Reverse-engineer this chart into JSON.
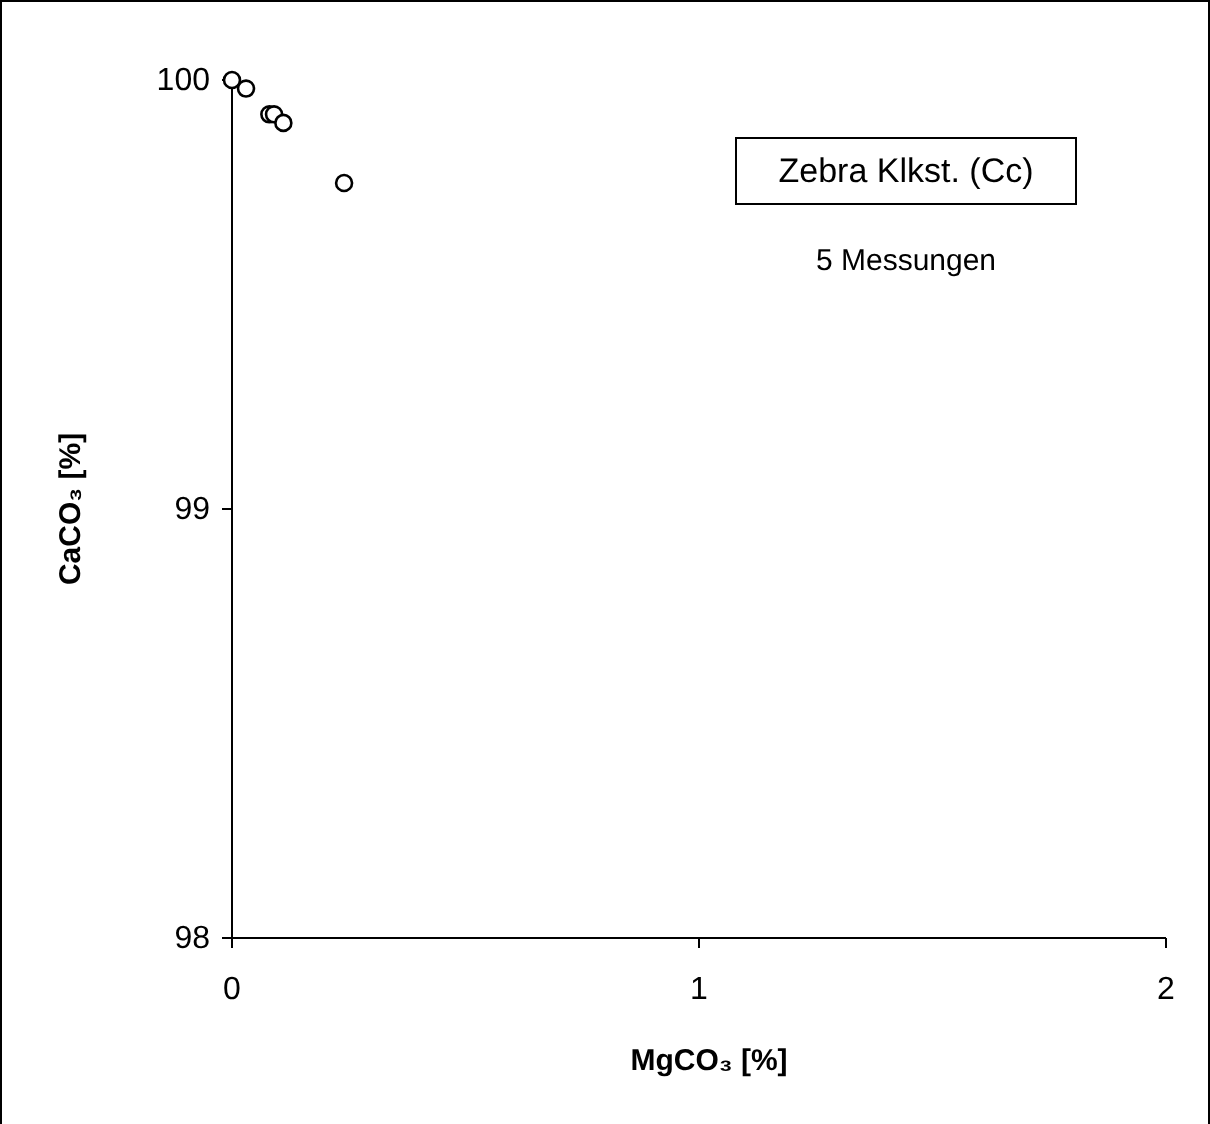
{
  "chart_data": {
    "type": "scatter",
    "xlabel": "MgCO₃ [%]",
    "ylabel": "CaCO₃ [%]",
    "x": [
      0.0,
      0.03,
      0.08,
      0.09,
      0.11,
      0.24
    ],
    "series": [
      {
        "color": "#000000",
        "values": [
          100.0,
          99.98,
          99.92,
          99.92,
          99.9,
          99.76
        ]
      }
    ],
    "xlim": [
      0,
      2
    ],
    "xticks": [
      0,
      1,
      2
    ],
    "ylim": [
      98,
      100
    ],
    "yticks": [
      98,
      99,
      100
    ],
    "marker": "circle",
    "grid": false,
    "annotations": [
      "Zebra Klkst. (Cc)",
      "5 Messungen"
    ]
  }
}
